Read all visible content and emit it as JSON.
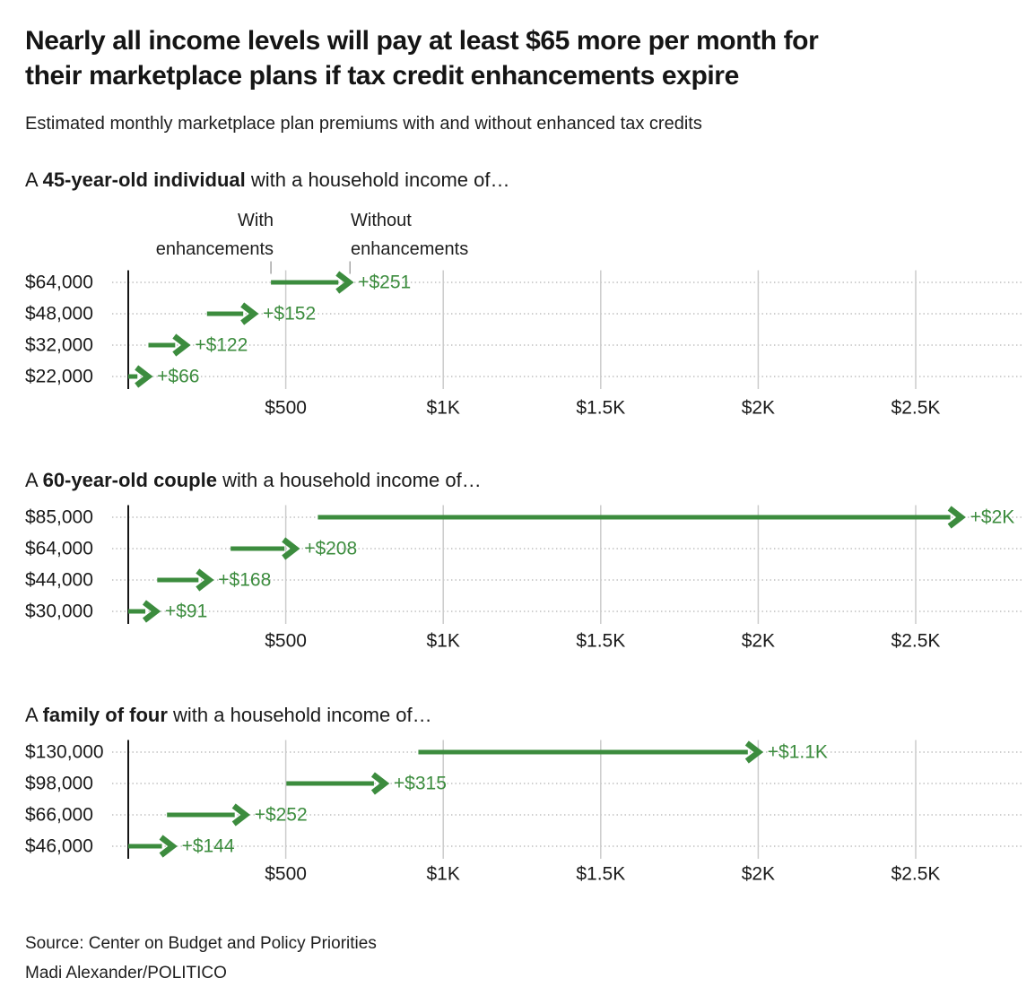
{
  "title": {
    "line1": "Nearly all income levels will pay at least $65 more per month for",
    "line2": "their marketplace plans if tax credit enhancements expire"
  },
  "subtitle": "Estimated monthly marketplace plan premiums with and without enhanced tax credits",
  "legend": {
    "with_line1": "With",
    "with_line2": "enhancements",
    "without_line1": "Without",
    "without_line2": "enhancements"
  },
  "x_axis": {
    "tick_labels": [
      "$500",
      "$1K",
      "$1.5K",
      "$2K",
      "$2.5K"
    ],
    "tick_values": [
      500,
      1000,
      1500,
      2000,
      2500
    ],
    "range_dollars": [
      0,
      2840
    ],
    "grid": true
  },
  "colors": {
    "arrow_green": "#3c8c3e",
    "text_dark": "#1a1a1a",
    "gridline": "#cccccc",
    "dotted_line": "#b0b0b0",
    "axis_line": "#151515",
    "legend_tick": "#a6a6a6"
  },
  "chart_data": [
    {
      "type": "arrow-range",
      "title_prefix": "A ",
      "title_bold": "45-year-old individual",
      "title_suffix": " with a household income of…",
      "rows": [
        {
          "income_label": "$64,000",
          "with_enhancements": 453,
          "without_enhancements": 704,
          "delta_label": "+$251"
        },
        {
          "income_label": "$48,000",
          "with_enhancements": 250,
          "without_enhancements": 402,
          "delta_label": "+$152"
        },
        {
          "income_label": "$32,000",
          "with_enhancements": 64,
          "without_enhancements": 186,
          "delta_label": "+$122"
        },
        {
          "income_label": "$22,000",
          "with_enhancements": 0,
          "without_enhancements": 66,
          "delta_label": "+$66"
        }
      ]
    },
    {
      "type": "arrow-range",
      "title_prefix": "A ",
      "title_bold": "60-year-old couple",
      "title_suffix": " with a household income of…",
      "rows": [
        {
          "income_label": "$85,000",
          "with_enhancements": 602,
          "without_enhancements": 2647,
          "delta_label": "+$2K"
        },
        {
          "income_label": "$64,000",
          "with_enhancements": 325,
          "without_enhancements": 533,
          "delta_label": "+$208"
        },
        {
          "income_label": "$44,000",
          "with_enhancements": 92,
          "without_enhancements": 260,
          "delta_label": "+$168"
        },
        {
          "income_label": "$30,000",
          "with_enhancements": 0,
          "without_enhancements": 91,
          "delta_label": "+$91"
        }
      ]
    },
    {
      "type": "arrow-range",
      "title_prefix": "A ",
      "title_bold": "family of four",
      "title_suffix": " with a household income of…",
      "rows": [
        {
          "income_label": "$130,000",
          "with_enhancements": 921,
          "without_enhancements": 2004,
          "delta_label": "+$1.1K"
        },
        {
          "income_label": "$98,000",
          "with_enhancements": 502,
          "without_enhancements": 817,
          "delta_label": "+$315"
        },
        {
          "income_label": "$66,000",
          "with_enhancements": 123,
          "without_enhancements": 375,
          "delta_label": "+$252"
        },
        {
          "income_label": "$46,000",
          "with_enhancements": 0,
          "without_enhancements": 144,
          "delta_label": "+$144"
        }
      ]
    }
  ],
  "source": "Source: Center on Budget and Policy Priorities",
  "byline": "Madi Alexander/POLITICO"
}
